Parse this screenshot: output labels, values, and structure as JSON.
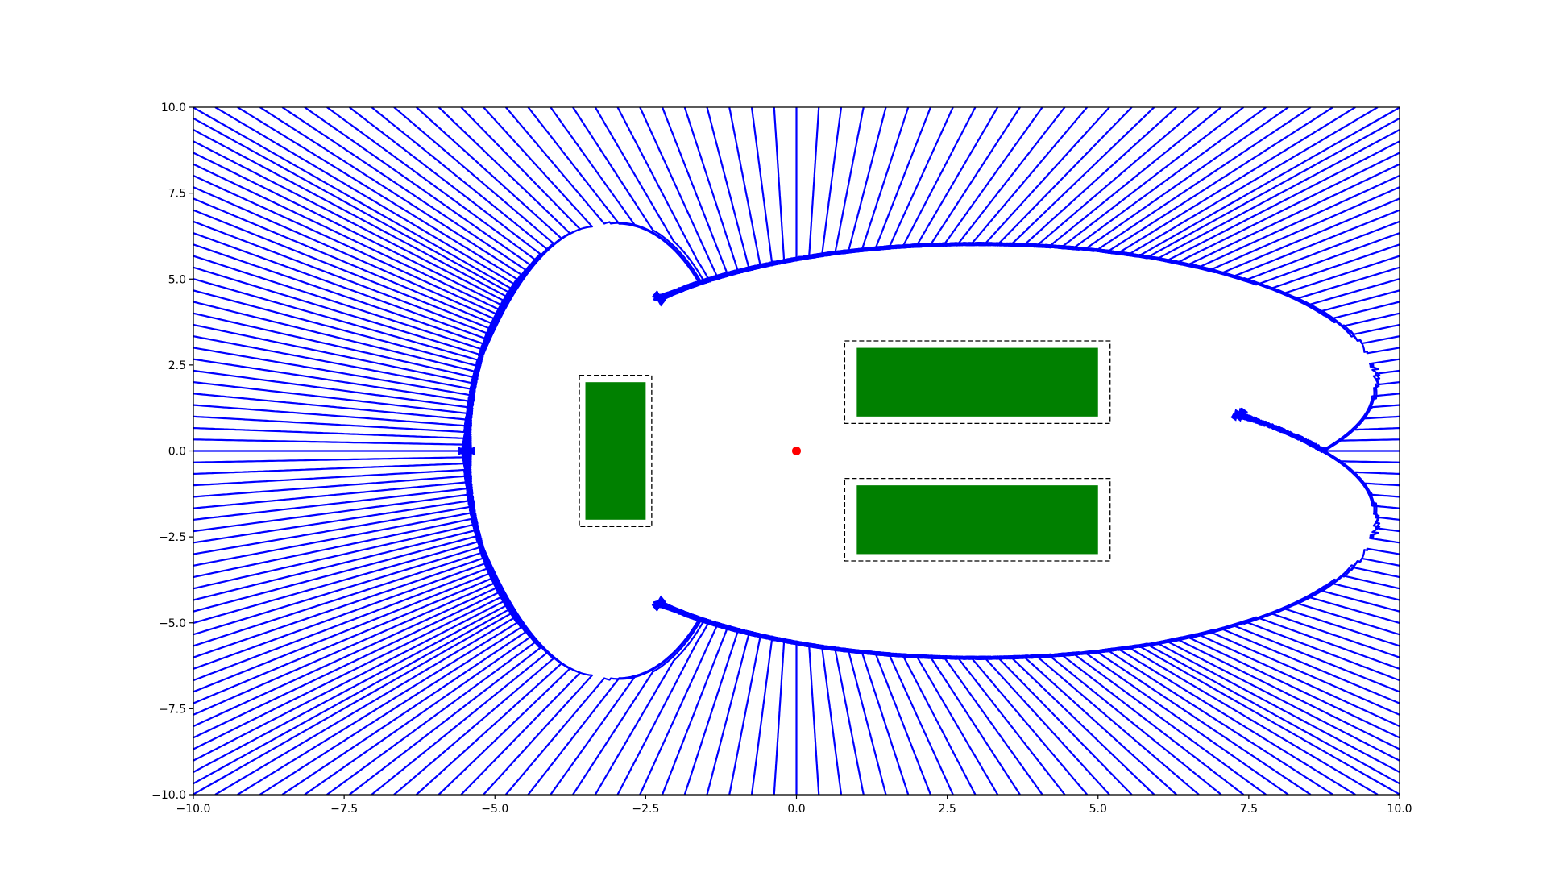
{
  "chart_data": {
    "type": "streamplot",
    "title": "",
    "xlabel": "",
    "ylabel": "",
    "xlim": [
      -10,
      10
    ],
    "ylim": [
      -10,
      10
    ],
    "grid": false,
    "stream_color": "#0000ff",
    "x_ticks": [
      {
        "value": -10,
        "label": "−10.0"
      },
      {
        "value": -7.5,
        "label": "−7.5"
      },
      {
        "value": -5,
        "label": "−5.0"
      },
      {
        "value": -2.5,
        "label": "−2.5"
      },
      {
        "value": 0,
        "label": "0.0"
      },
      {
        "value": 2.5,
        "label": "2.5"
      },
      {
        "value": 5,
        "label": "5.0"
      },
      {
        "value": 7.5,
        "label": "7.5"
      },
      {
        "value": 10,
        "label": "10.0"
      }
    ],
    "y_ticks": [
      {
        "value": -10,
        "label": "−10.0"
      },
      {
        "value": -7.5,
        "label": "−7.5"
      },
      {
        "value": -5,
        "label": "−5.0"
      },
      {
        "value": -2.5,
        "label": "−2.5"
      },
      {
        "value": 0,
        "label": "0.0"
      },
      {
        "value": 2.5,
        "label": "2.5"
      },
      {
        "value": 5,
        "label": "5.0"
      },
      {
        "value": 7.5,
        "label": "7.5"
      },
      {
        "value": 10,
        "label": "10.0"
      }
    ],
    "goal": {
      "x": 0.0,
      "y": 0.0,
      "color": "#ff0000"
    },
    "obstacles": [
      {
        "name": "obstacle-left",
        "x": [
          -3.5,
          -2.5
        ],
        "y": [
          -2.0,
          2.0
        ],
        "color": "#008000",
        "buffer": {
          "x": [
            -3.6,
            -2.4
          ],
          "y": [
            -2.2,
            2.2
          ]
        }
      },
      {
        "name": "obstacle-upper-right",
        "x": [
          1.0,
          5.0
        ],
        "y": [
          1.0,
          3.0
        ],
        "color": "#008000",
        "buffer": {
          "x": [
            0.8,
            5.2
          ],
          "y": [
            0.8,
            3.2
          ]
        }
      },
      {
        "name": "obstacle-lower-right",
        "x": [
          1.0,
          5.0
        ],
        "y": [
          -3.0,
          -1.0
        ],
        "color": "#008000",
        "buffer": {
          "x": [
            0.8,
            5.2
          ],
          "y": [
            -3.2,
            -0.8
          ]
        }
      }
    ]
  }
}
